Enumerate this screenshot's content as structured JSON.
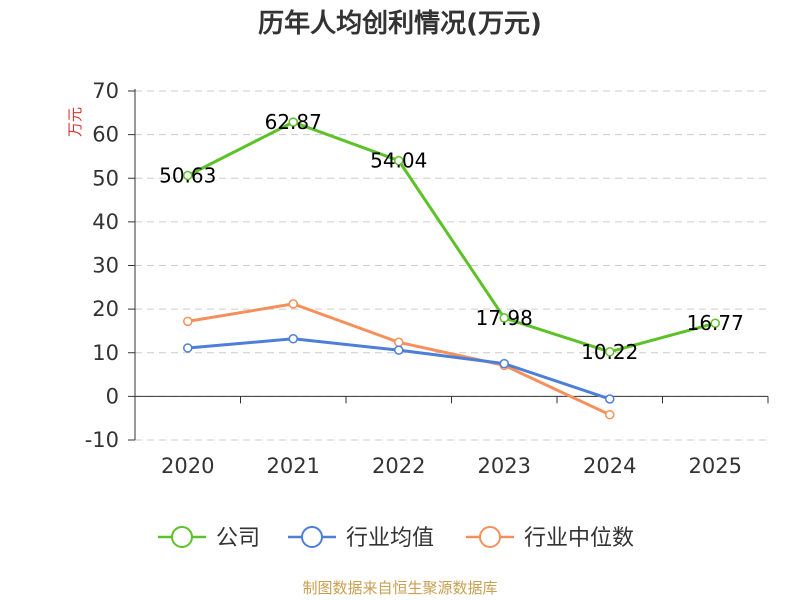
{
  "chart_data": {
    "type": "line",
    "title": "历年人均创利情况(万元)",
    "ylabel": "万元",
    "xlabel": "",
    "categories": [
      "2020",
      "2021",
      "2022",
      "2023",
      "2024",
      "2025"
    ],
    "ylim": [
      -10,
      70
    ],
    "yticks": [
      -10,
      0,
      10,
      20,
      30,
      40,
      50,
      60,
      70
    ],
    "grid": true,
    "legend_position": "bottom",
    "series": [
      {
        "name": "公司",
        "color": "#5cc227",
        "values": [
          50.63,
          62.87,
          54.04,
          17.98,
          10.22,
          16.77
        ],
        "labels": [
          "50.63",
          "62.87",
          "54.04",
          "17.98",
          "10.22",
          "16.77"
        ]
      },
      {
        "name": "行业均值",
        "color": "#4e7fd8",
        "values": [
          11.1,
          13.2,
          10.6,
          7.5,
          -0.6,
          null
        ]
      },
      {
        "name": "行业中位数",
        "color": "#f6905a",
        "values": [
          17.2,
          21.2,
          12.4,
          7.1,
          -4.2,
          null
        ]
      }
    ],
    "source": "制图数据来自恒生聚源数据库"
  }
}
